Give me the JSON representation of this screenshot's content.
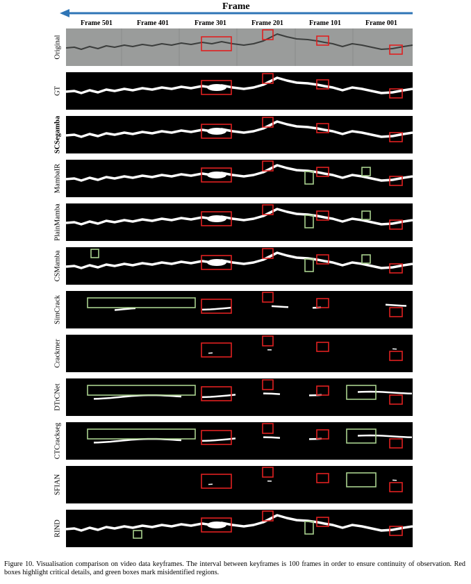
{
  "figure": {
    "axis_title": "Frame",
    "frame_labels": [
      "Frame 501",
      "Frame 401",
      "Frame 301",
      "Frame 201",
      "Frame 101",
      "Frame 001"
    ],
    "caption": "Figure 10. Visualisation comparison on video data keyframes. The interval between keyframes is 100 frames in order to ensure continuity of observation. Red boxes highlight critical details, and green boxes mark misidentified regions.",
    "colors": {
      "arrow": "#2e75b6",
      "red_box": "#e02020",
      "green_box": "#a9d18e",
      "mask_bg": "#000000",
      "crack": "#ffffff",
      "original_bg": "#9a9c9b"
    },
    "rows": [
      {
        "label": "Original",
        "bold": false,
        "type": "original",
        "crack": "full",
        "green": []
      },
      {
        "label": "GT",
        "bold": false,
        "type": "mask",
        "crack": "full",
        "green": []
      },
      {
        "label": "SCSegamba",
        "bold": true,
        "type": "mask",
        "crack": "full",
        "green": []
      },
      {
        "label": "MambaIR",
        "bold": false,
        "type": "mask",
        "crack": "full",
        "green": [
          "g201",
          "g101"
        ]
      },
      {
        "label": "PlainMamba",
        "bold": false,
        "type": "mask",
        "crack": "full",
        "green": [
          "g201",
          "g101"
        ]
      },
      {
        "label": "CSMamba",
        "bold": false,
        "type": "mask",
        "crack": "full",
        "green": [
          "g501",
          "g201",
          "g101"
        ]
      },
      {
        "label": "SimCrack",
        "bold": false,
        "type": "mask",
        "crack": "partial",
        "green": [
          "gbig"
        ]
      },
      {
        "label": "Crackmer",
        "bold": false,
        "type": "mask",
        "crack": "sparse",
        "green": []
      },
      {
        "label": "DTrCNet",
        "bold": false,
        "type": "mask",
        "crack": "partial2",
        "green": [
          "gbig",
          "g101w"
        ]
      },
      {
        "label": "CTCrackseg",
        "bold": false,
        "type": "mask",
        "crack": "partial2",
        "green": [
          "gbig",
          "g101w"
        ]
      },
      {
        "label": "SFIAN",
        "bold": false,
        "type": "mask",
        "crack": "sparse",
        "green": [
          "g101w"
        ]
      },
      {
        "label": "RIND",
        "bold": false,
        "type": "mask",
        "crack": "full",
        "green": [
          "g401",
          "g201"
        ]
      }
    ]
  }
}
